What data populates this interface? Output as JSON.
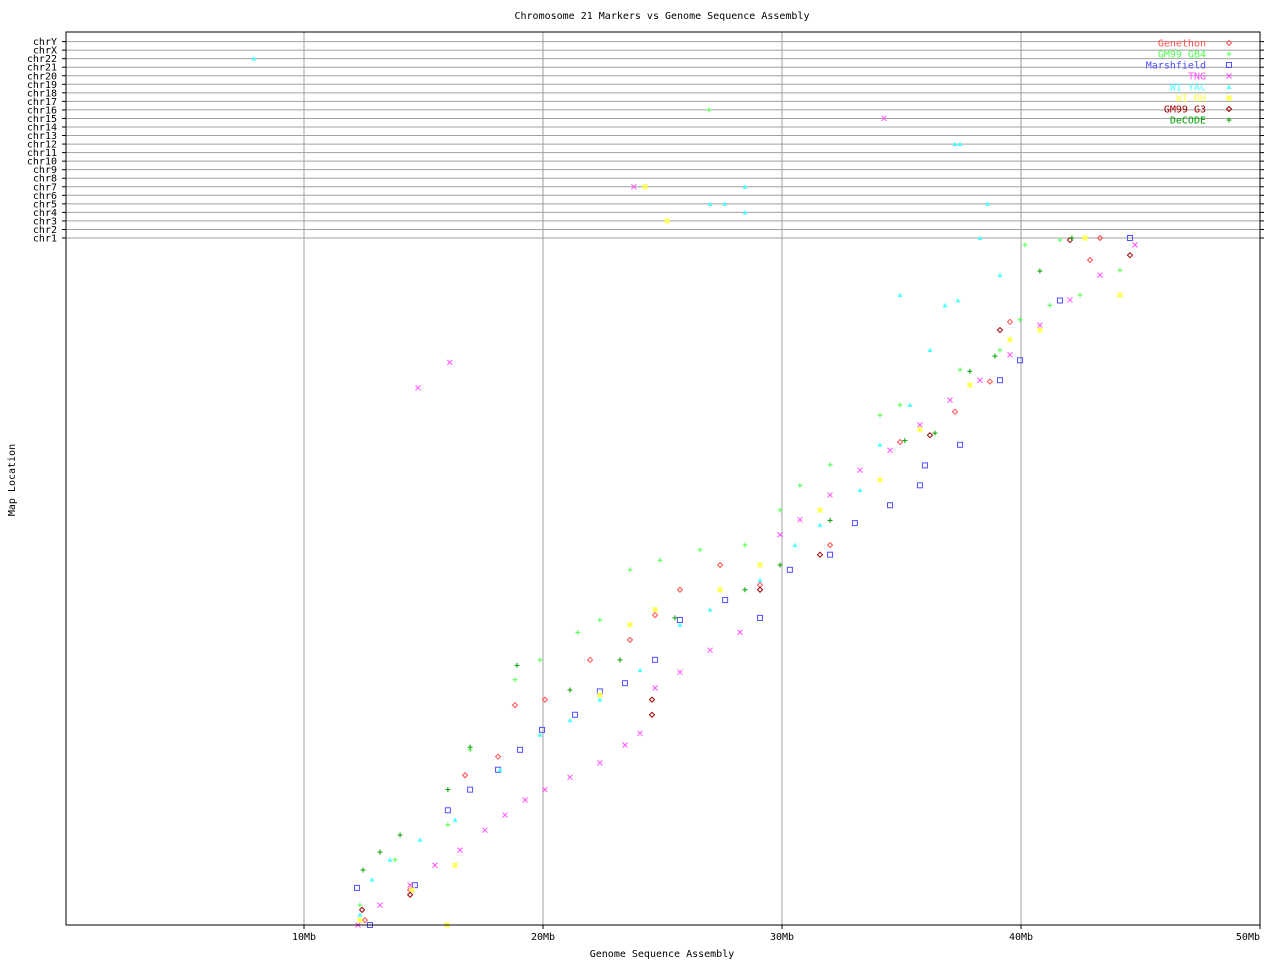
{
  "chart_data": {
    "type": "scatter",
    "title": "Chromosome 21 Markers vs Genome Sequence Assembly",
    "xlabel": "Genome Sequence Assembly",
    "ylabel": "Map Location",
    "xlim": [
      0,
      50
    ],
    "x_unit": "Mb",
    "x_ticks": [
      "10Mb",
      "20Mb",
      "30Mb",
      "40Mb",
      "50Mb"
    ],
    "x_tick_values": [
      10,
      20,
      30,
      40,
      50
    ],
    "map_ylim": [
      0,
      100
    ],
    "chromosome_rows": [
      "chr1",
      "chr2",
      "chr3",
      "chr4",
      "chr5",
      "chr6",
      "chr7",
      "chr8",
      "chr9",
      "chr10",
      "chr11",
      "chr12",
      "chr13",
      "chr14",
      "chr15",
      "chr16",
      "chr17",
      "chr18",
      "chr19",
      "chr20",
      "chr21",
      "chr22",
      "chrX",
      "chrY"
    ],
    "grid": true,
    "legend_placement": "top-right",
    "series": [
      {
        "name": "Genethon",
        "marker": "diamond",
        "color": "#ff5050",
        "points": [
          [
            12.55,
            0.7
          ],
          [
            14.44,
            5.1
          ],
          [
            16.74,
            21.8
          ],
          [
            18.12,
            24.5
          ],
          [
            18.83,
            32
          ],
          [
            20.08,
            32.8
          ],
          [
            21.97,
            38.6
          ],
          [
            23.64,
            41.5
          ],
          [
            24.69,
            45.1
          ],
          [
            25.73,
            48.8
          ],
          [
            27.41,
            52.4
          ],
          [
            29.08,
            49.5
          ],
          [
            32.01,
            55.3
          ],
          [
            34.94,
            70.3
          ],
          [
            37.24,
            74.7
          ],
          [
            38.7,
            79.1
          ],
          [
            39.54,
            87.8
          ],
          [
            42.89,
            96.8
          ],
          [
            43.31,
            100
          ]
        ],
        "off_chromosome": []
      },
      {
        "name": "GM99 GB4",
        "marker": "plus",
        "color": "#50ff50",
        "points": [
          [
            12.34,
            2.9
          ],
          [
            13.81,
            9.5
          ],
          [
            16.02,
            14.6
          ],
          [
            16.95,
            25.5
          ],
          [
            18.83,
            35.7
          ],
          [
            19.87,
            38.6
          ],
          [
            21.46,
            42.6
          ],
          [
            22.38,
            44.4
          ],
          [
            23.64,
            51.7
          ],
          [
            24.9,
            53.1
          ],
          [
            26.57,
            54.6
          ],
          [
            28.45,
            55.3
          ],
          [
            29.92,
            60.4
          ],
          [
            30.75,
            64
          ],
          [
            32.01,
            67
          ],
          [
            34.1,
            74.2
          ],
          [
            34.94,
            75.7
          ],
          [
            37.45,
            80.8
          ],
          [
            39.12,
            83.7
          ],
          [
            39.96,
            88.1
          ],
          [
            41.21,
            90.2
          ],
          [
            42.47,
            91.7
          ],
          [
            44.14,
            95.3
          ],
          [
            40.17,
            99
          ],
          [
            41.63,
            99.7
          ]
        ],
        "off_chromosome": [
          [
            26.95,
            "chr16"
          ]
        ]
      },
      {
        "name": "Marshfield",
        "marker": "square",
        "color": "#5050ff",
        "points": [
          [
            12.22,
            5.4
          ],
          [
            12.76,
            0
          ],
          [
            14.64,
            5.8
          ],
          [
            16.02,
            16.7
          ],
          [
            16.95,
            19.7
          ],
          [
            18.12,
            22.6
          ],
          [
            19.04,
            25.5
          ],
          [
            19.96,
            28.4
          ],
          [
            21.34,
            30.6
          ],
          [
            22.38,
            34
          ],
          [
            23.43,
            35.2
          ],
          [
            24.69,
            38.6
          ],
          [
            25.73,
            44.4
          ],
          [
            27.62,
            47.3
          ],
          [
            29.08,
            44.7
          ],
          [
            30.33,
            51.7
          ],
          [
            32.01,
            53.9
          ],
          [
            33.05,
            58.5
          ],
          [
            34.52,
            61.1
          ],
          [
            35.77,
            64
          ],
          [
            35.98,
            66.9
          ],
          [
            37.45,
            69.9
          ],
          [
            39.12,
            79.3
          ],
          [
            39.96,
            82.2
          ],
          [
            41.63,
            90.9
          ],
          [
            44.56,
            100
          ]
        ],
        "off_chromosome": []
      },
      {
        "name": "TNG",
        "marker": "x",
        "color": "#ff50ff",
        "points": [
          [
            12.26,
            0
          ],
          [
            13.18,
            2.9
          ],
          [
            14.44,
            5.8
          ],
          [
            15.48,
            8.7
          ],
          [
            16.53,
            10.9
          ],
          [
            17.57,
            13.8
          ],
          [
            18.41,
            16
          ],
          [
            19.25,
            18.2
          ],
          [
            20.08,
            19.7
          ],
          [
            21.13,
            21.5
          ],
          [
            22.38,
            23.6
          ],
          [
            23.43,
            26.2
          ],
          [
            24.06,
            27.9
          ],
          [
            24.69,
            34.5
          ],
          [
            25.73,
            36.8
          ],
          [
            26.99,
            40
          ],
          [
            28.24,
            42.6
          ],
          [
            29.92,
            56.8
          ],
          [
            30.75,
            59
          ],
          [
            32.01,
            62.6
          ],
          [
            33.26,
            66.2
          ],
          [
            34.52,
            69.1
          ],
          [
            35.77,
            72.8
          ],
          [
            37.03,
            76.4
          ],
          [
            38.28,
            79.3
          ],
          [
            39.54,
            83
          ],
          [
            40.79,
            87.3
          ],
          [
            42.05,
            91
          ],
          [
            43.31,
            94.6
          ],
          [
            44.77,
            99
          ],
          [
            14.77,
            78.2
          ],
          [
            16.1,
            81.9
          ]
        ],
        "off_chromosome": [
          [
            34.27,
            "chr15"
          ],
          [
            23.8,
            "chr7"
          ]
        ]
      },
      {
        "name": "WI YAC",
        "marker": "triangle",
        "color": "#50ffff",
        "points": [
          [
            12.34,
            1.5
          ],
          [
            12.85,
            6.6
          ],
          [
            13.6,
            9.5
          ],
          [
            14.85,
            12.4
          ],
          [
            16.32,
            15.3
          ],
          [
            18.2,
            22.6
          ],
          [
            19.87,
            27.7
          ],
          [
            21.13,
            29.8
          ],
          [
            22.38,
            32.8
          ],
          [
            24.06,
            37.1
          ],
          [
            25.73,
            43.7
          ],
          [
            26.99,
            45.9
          ],
          [
            29.08,
            50.2
          ],
          [
            30.54,
            55.3
          ],
          [
            31.59,
            58.2
          ],
          [
            33.26,
            63.3
          ],
          [
            34.1,
            69.9
          ],
          [
            35.35,
            75.7
          ],
          [
            36.19,
            83.7
          ],
          [
            36.82,
            90.2
          ],
          [
            37.36,
            90.9
          ],
          [
            34.94,
            91.7
          ],
          [
            39.12,
            94.6
          ],
          [
            38.28,
            100
          ]
        ],
        "off_chromosome": [
          [
            7.9,
            "chr22"
          ],
          [
            28.45,
            "chr7"
          ],
          [
            26.99,
            "chr5"
          ],
          [
            27.6,
            "chr5"
          ],
          [
            28.45,
            "chr4"
          ],
          [
            38.6,
            "chr5"
          ],
          [
            37.24,
            "chr12"
          ],
          [
            37.45,
            "chr12"
          ]
        ]
      },
      {
        "name": "WI RH",
        "marker": "star",
        "color": "#ffff50",
        "points": [
          [
            12.34,
            0.7
          ],
          [
            14.52,
            5.1
          ],
          [
            16.32,
            8.7
          ],
          [
            22.38,
            33.5
          ],
          [
            23.64,
            43.7
          ],
          [
            24.69,
            45.9
          ],
          [
            27.41,
            48.8
          ],
          [
            29.08,
            52.4
          ],
          [
            31.59,
            60.4
          ],
          [
            34.1,
            64.8
          ],
          [
            35.77,
            72.1
          ],
          [
            37.86,
            78.6
          ],
          [
            39.54,
            85.2
          ],
          [
            40.79,
            86.6
          ],
          [
            42.68,
            100
          ],
          [
            44.14,
            91.7
          ],
          [
            15.98,
            0
          ]
        ],
        "off_chromosome": [
          [
            24.27,
            "chr7"
          ],
          [
            25.19,
            "chr3"
          ]
        ]
      },
      {
        "name": "GM99 G3",
        "marker": "diamond",
        "color": "#a00000",
        "points": [
          [
            12.43,
            2.2
          ],
          [
            14.44,
            4.4
          ],
          [
            24.56,
            32.8
          ],
          [
            24.56,
            30.6
          ],
          [
            29.08,
            48.8
          ],
          [
            31.59,
            53.9
          ],
          [
            36.19,
            71.3
          ],
          [
            39.12,
            86.6
          ],
          [
            44.56,
            97.5
          ],
          [
            42.05,
            99.7
          ]
        ],
        "off_chromosome": []
      },
      {
        "name": "DeCODE",
        "marker": "plus",
        "color": "#00a000",
        "points": [
          [
            12.47,
            8
          ],
          [
            13.18,
            10.6
          ],
          [
            14.02,
            13.1
          ],
          [
            16.02,
            19.7
          ],
          [
            16.95,
            25.9
          ],
          [
            18.91,
            37.8
          ],
          [
            21.13,
            34.2
          ],
          [
            23.22,
            38.6
          ],
          [
            25.52,
            44.7
          ],
          [
            28.45,
            48.8
          ],
          [
            29.92,
            52.4
          ],
          [
            32.01,
            58.9
          ],
          [
            35.14,
            70.5
          ],
          [
            36.4,
            71.6
          ],
          [
            37.86,
            80.6
          ],
          [
            38.91,
            82.8
          ],
          [
            40.79,
            95.2
          ],
          [
            42.13,
            100
          ]
        ],
        "off_chromosome": []
      }
    ]
  }
}
